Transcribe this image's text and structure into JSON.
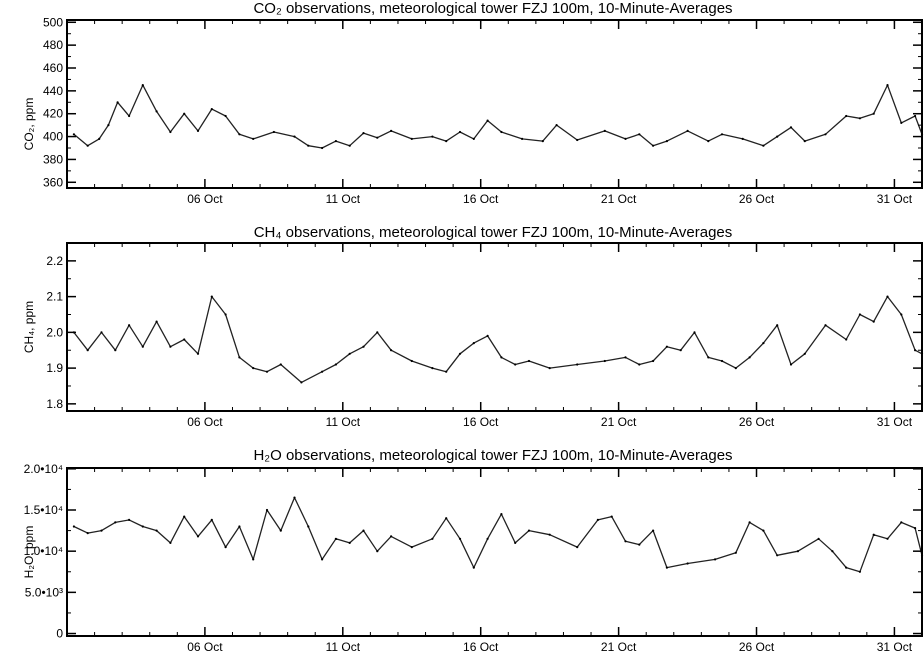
{
  "chart_data": [
    {
      "type": "line",
      "title": "CO₂ observations, meteorological tower FZJ 100m, 10-Minute-Averages",
      "ylabel": "CO₂, ppm",
      "xlim": [
        "2023-10-01",
        "2023-11-01"
      ],
      "ylim": [
        355,
        502
      ],
      "x_tick_labels": [
        "06 Oct",
        "11 Oct",
        "16 Oct",
        "21 Oct",
        "26 Oct",
        "31 Oct"
      ],
      "x_tick_dates": [
        "2023-10-06",
        "2023-10-11",
        "2023-10-16",
        "2023-10-21",
        "2023-10-26",
        "2023-10-31"
      ],
      "y_ticks": [
        360,
        380,
        400,
        420,
        440,
        460,
        480,
        500
      ],
      "y_tick_labels": [
        "360",
        "380",
        "400",
        "420",
        "440",
        "460",
        "480",
        "500"
      ],
      "series": [
        {
          "x": [
            "2023-10-01",
            "2023-10-01",
            "2023-10-02",
            "2023-10-02",
            "2023-10-02",
            "2023-10-03",
            "2023-10-03",
            "2023-10-04",
            "2023-10-04",
            "2023-10-05",
            "2023-10-05",
            "2023-10-06",
            "2023-10-06",
            "2023-10-07",
            "2023-10-07",
            "2023-10-08",
            "2023-10-09",
            "2023-10-09",
            "2023-10-10",
            "2023-10-10",
            "2023-10-11",
            "2023-10-11",
            "2023-10-12",
            "2023-10-12",
            "2023-10-13",
            "2023-10-14",
            "2023-10-14",
            "2023-10-15",
            "2023-10-15",
            "2023-10-16",
            "2023-10-16",
            "2023-10-17",
            "2023-10-18",
            "2023-10-18",
            "2023-10-19",
            "2023-10-20",
            "2023-10-21",
            "2023-10-21",
            "2023-10-22",
            "2023-10-22",
            "2023-10-23",
            "2023-10-24",
            "2023-10-24",
            "2023-10-25",
            "2023-10-26",
            "2023-10-26",
            "2023-10-27",
            "2023-10-27",
            "2023-10-28",
            "2023-10-29",
            "2023-10-29",
            "2023-10-30",
            "2023-10-30",
            "2023-10-31",
            "2023-10-31",
            "2023-11-01"
          ],
          "values": [
            402,
            392,
            398,
            410,
            430,
            418,
            445,
            422,
            404,
            420,
            405,
            424,
            418,
            402,
            398,
            404,
            400,
            392,
            390,
            396,
            392,
            403,
            399,
            405,
            398,
            400,
            396,
            404,
            398,
            414,
            404,
            398,
            396,
            410,
            397,
            405,
            398,
            402,
            392,
            396,
            405,
            396,
            402,
            398,
            392,
            400,
            408,
            396,
            402,
            418,
            416,
            420,
            445,
            412,
            418,
            402
          ]
        }
      ]
    },
    {
      "type": "line",
      "title": "CH₄ observations, meteorological tower FZJ 100m, 10-Minute-Averages",
      "ylabel": "CH₄, ppm",
      "xlim": [
        "2023-10-01",
        "2023-11-01"
      ],
      "ylim": [
        1.78,
        2.25
      ],
      "x_tick_labels": [
        "06 Oct",
        "11 Oct",
        "16 Oct",
        "21 Oct",
        "26 Oct",
        "31 Oct"
      ],
      "x_tick_dates": [
        "2023-10-06",
        "2023-10-11",
        "2023-10-16",
        "2023-10-21",
        "2023-10-26",
        "2023-10-31"
      ],
      "y_ticks": [
        1.8,
        1.9,
        2.0,
        2.1,
        2.2
      ],
      "y_tick_labels": [
        "1.8",
        "1.9",
        "2.0",
        "2.1",
        "2.2"
      ],
      "series": [
        {
          "x": [
            "2023-10-01",
            "2023-10-01",
            "2023-10-02",
            "2023-10-02",
            "2023-10-03",
            "2023-10-03",
            "2023-10-04",
            "2023-10-04",
            "2023-10-05",
            "2023-10-05",
            "2023-10-06",
            "2023-10-06",
            "2023-10-07",
            "2023-10-07",
            "2023-10-08",
            "2023-10-08",
            "2023-10-09",
            "2023-10-10",
            "2023-10-10",
            "2023-10-11",
            "2023-10-11",
            "2023-10-12",
            "2023-10-12",
            "2023-10-13",
            "2023-10-14",
            "2023-10-14",
            "2023-10-15",
            "2023-10-15",
            "2023-10-16",
            "2023-10-16",
            "2023-10-17",
            "2023-10-17",
            "2023-10-18",
            "2023-10-19",
            "2023-10-20",
            "2023-10-21",
            "2023-10-21",
            "2023-10-22",
            "2023-10-22",
            "2023-10-23",
            "2023-10-23",
            "2023-10-24",
            "2023-10-24",
            "2023-10-25",
            "2023-10-25",
            "2023-10-26",
            "2023-10-26",
            "2023-10-27",
            "2023-10-27",
            "2023-10-28",
            "2023-10-29",
            "2023-10-29",
            "2023-10-30",
            "2023-10-30",
            "2023-10-31",
            "2023-10-31",
            "2023-11-01"
          ],
          "values": [
            2.0,
            1.95,
            2.0,
            1.95,
            2.02,
            1.96,
            2.03,
            1.96,
            1.98,
            1.94,
            2.1,
            2.05,
            1.93,
            1.9,
            1.89,
            1.91,
            1.86,
            1.89,
            1.91,
            1.94,
            1.96,
            2.0,
            1.95,
            1.92,
            1.9,
            1.89,
            1.94,
            1.97,
            1.99,
            1.93,
            1.91,
            1.92,
            1.9,
            1.91,
            1.92,
            1.93,
            1.91,
            1.92,
            1.96,
            1.95,
            2.0,
            1.93,
            1.92,
            1.9,
            1.93,
            1.97,
            2.02,
            1.91,
            1.94,
            2.02,
            1.98,
            2.05,
            2.03,
            2.1,
            2.05,
            1.95,
            1.94
          ]
        }
      ]
    },
    {
      "type": "line",
      "title": "H₂O observations, meteorological tower FZJ 100m, 10-Minute-Averages",
      "ylabel": "H₂O, ppm",
      "xlim": [
        "2023-10-01",
        "2023-11-01"
      ],
      "ylim": [
        -300,
        20100
      ],
      "x_tick_labels": [
        "06 Oct",
        "11 Oct",
        "16 Oct",
        "21 Oct",
        "26 Oct",
        "31 Oct"
      ],
      "x_tick_dates": [
        "2023-10-06",
        "2023-10-11",
        "2023-10-16",
        "2023-10-21",
        "2023-10-26",
        "2023-10-31"
      ],
      "y_ticks": [
        0,
        5000,
        10000,
        15000,
        20000
      ],
      "y_tick_labels": [
        "0",
        "5.0•10³",
        "1.0•10⁴",
        "1.5•10⁴",
        "2.0•10⁴"
      ],
      "series": [
        {
          "x": [
            "2023-10-01",
            "2023-10-01",
            "2023-10-02",
            "2023-10-02",
            "2023-10-03",
            "2023-10-03",
            "2023-10-04",
            "2023-10-04",
            "2023-10-05",
            "2023-10-05",
            "2023-10-06",
            "2023-10-06",
            "2023-10-07",
            "2023-10-07",
            "2023-10-08",
            "2023-10-08",
            "2023-10-09",
            "2023-10-09",
            "2023-10-10",
            "2023-10-10",
            "2023-10-11",
            "2023-10-11",
            "2023-10-12",
            "2023-10-12",
            "2023-10-13",
            "2023-10-14",
            "2023-10-14",
            "2023-10-15",
            "2023-10-15",
            "2023-10-16",
            "2023-10-16",
            "2023-10-17",
            "2023-10-17",
            "2023-10-18",
            "2023-10-19",
            "2023-10-20",
            "2023-10-20",
            "2023-10-21",
            "2023-10-21",
            "2023-10-22",
            "2023-10-22",
            "2023-10-23",
            "2023-10-24",
            "2023-10-25",
            "2023-10-25",
            "2023-10-26",
            "2023-10-26",
            "2023-10-27",
            "2023-10-28",
            "2023-10-28",
            "2023-10-29",
            "2023-10-29",
            "2023-10-30",
            "2023-10-30",
            "2023-10-31",
            "2023-10-31",
            "2023-11-01"
          ],
          "values": [
            13000,
            12200,
            12500,
            13500,
            13800,
            13000,
            12500,
            11000,
            14200,
            11800,
            13800,
            10500,
            13000,
            9000,
            15000,
            12500,
            16500,
            13000,
            9000,
            11500,
            11000,
            12500,
            10000,
            11800,
            10500,
            11500,
            14000,
            11500,
            8000,
            11500,
            14500,
            11000,
            12500,
            12000,
            10500,
            13800,
            14200,
            11200,
            10800,
            12500,
            8000,
            8500,
            9000,
            9800,
            13500,
            12500,
            9500,
            10000,
            11500,
            10000,
            8000,
            7500,
            12000,
            11500,
            13500,
            12800,
            9500
          ]
        }
      ]
    }
  ]
}
